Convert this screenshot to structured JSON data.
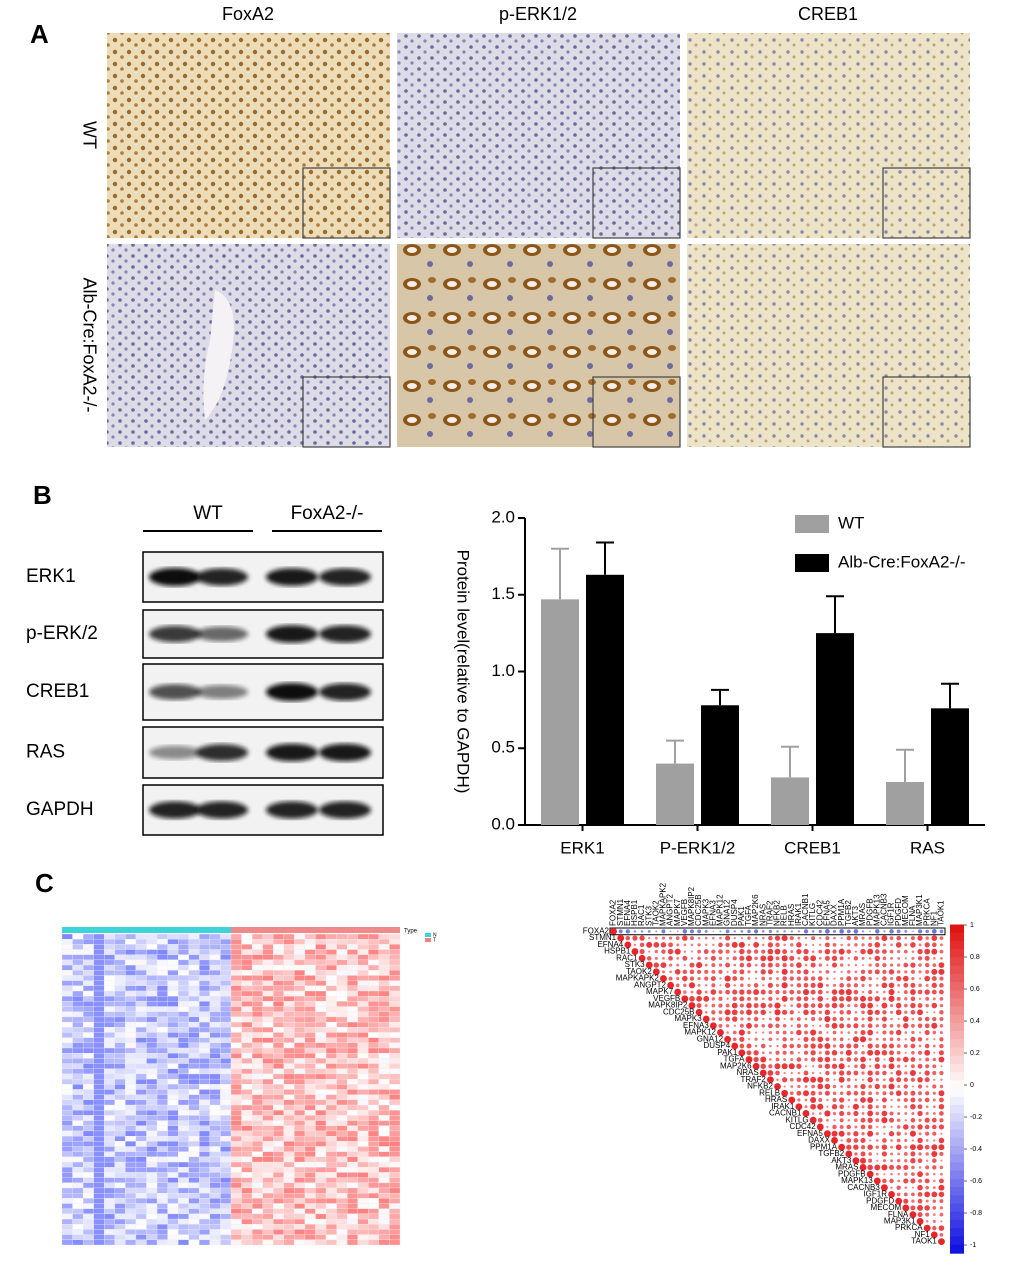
{
  "panel_labels": [
    "A",
    "B",
    "C"
  ],
  "ihc": {
    "columns": [
      "FoxA2",
      "p-ERK1/2",
      "CREB1"
    ],
    "rows": [
      "WT",
      "Alb-Cre:FoxA2-/-"
    ]
  },
  "blot": {
    "groups": [
      "WT",
      "FoxA2-/-"
    ],
    "proteins": [
      "ERK1",
      "p-ERK/2",
      "CREB1",
      "RAS",
      "GAPDH"
    ]
  },
  "chart_data": {
    "type": "bar",
    "ylabel": "Protein level(relative to GAPDH)",
    "categories": [
      "ERK1",
      "P-ERK1/2",
      "CREB1",
      "RAS"
    ],
    "series": [
      {
        "name": "WT",
        "color": "#a0a0a0",
        "values": [
          1.47,
          0.4,
          0.31,
          0.28
        ],
        "errors": [
          0.33,
          0.15,
          0.2,
          0.21
        ]
      },
      {
        "name": "Alb-Cre:FoxA2-/-",
        "color": "#000000",
        "values": [
          1.63,
          0.78,
          1.25,
          0.76
        ],
        "errors": [
          0.21,
          0.1,
          0.24,
          0.16
        ]
      }
    ],
    "ylim": [
      0,
      2.0
    ],
    "yticks": [
      {
        "value": 0,
        "label": "0.0"
      },
      {
        "value": 0.5,
        "label": "0.5"
      },
      {
        "value": 1,
        "label": "1.0"
      },
      {
        "value": 1.5,
        "label": "1.5"
      },
      {
        "value": 2,
        "label": "2.0"
      }
    ],
    "legend": "upper right"
  },
  "heatmap": {
    "legend_title": "Type",
    "legend_items": [
      "N",
      "T"
    ]
  },
  "correlation": {
    "genes": [
      "FOXA2",
      "STMN1",
      "EFNA4",
      "HSPB1",
      "RAC1",
      "STK3",
      "TAOK2",
      "MAPKAPK2",
      "ANGPT2",
      "MAPK7",
      "VEGFB",
      "MAPK8IP2",
      "CDC25B",
      "MAPK3",
      "EFNA3",
      "MAPK12",
      "GNA12",
      "DUSP4",
      "PAK1",
      "TGFA",
      "MAP2K6",
      "NRAS",
      "TRAF2",
      "NFKB2",
      "RELB",
      "HRAS",
      "IRAK1",
      "CACNB1",
      "KITLG",
      "CDC42",
      "EFNA5",
      "DAXX",
      "PPM1A",
      "TGFB2",
      "AKT3",
      "MRAS",
      "PDGFB",
      "MAPK13",
      "CACNB3",
      "IGF1R",
      "PDGFD",
      "MECOM",
      "FLNA",
      "MAP3K1",
      "PRKCA",
      "NF1",
      "TAOK1"
    ],
    "colorbar_ticks": [
      1,
      0.8,
      0.6,
      0.4,
      0.2,
      0,
      -0.2,
      -0.4,
      -0.6,
      -0.8,
      -1
    ]
  }
}
